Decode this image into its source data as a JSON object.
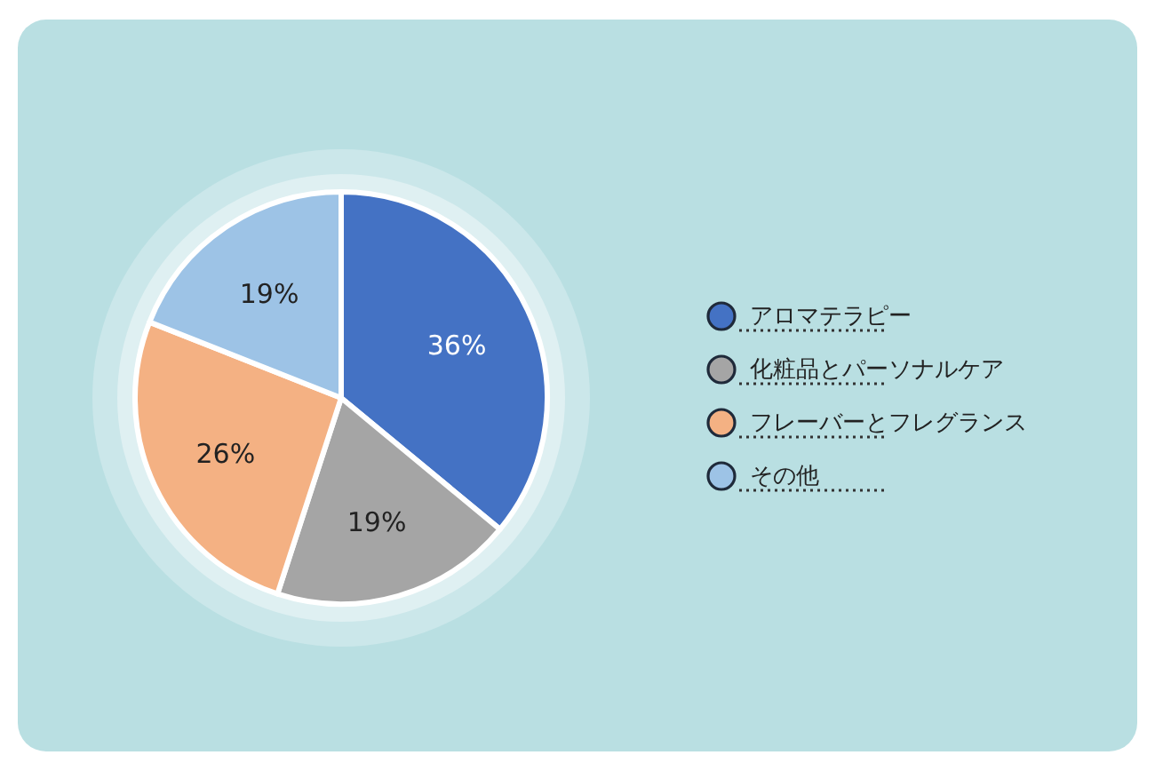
{
  "chart_data": {
    "type": "pie",
    "categories": [
      "アロマテラピー",
      "化粧品とパーソナルケア",
      "フレーバーとフレグランス",
      "その他"
    ],
    "values": [
      36,
      19,
      26,
      19
    ],
    "colors": [
      "#4472c4",
      "#a5a5a5",
      "#f4b183",
      "#9dc3e6"
    ],
    "value_labels": [
      "36%",
      "19%",
      "26%",
      "19%"
    ],
    "legend": "right"
  }
}
